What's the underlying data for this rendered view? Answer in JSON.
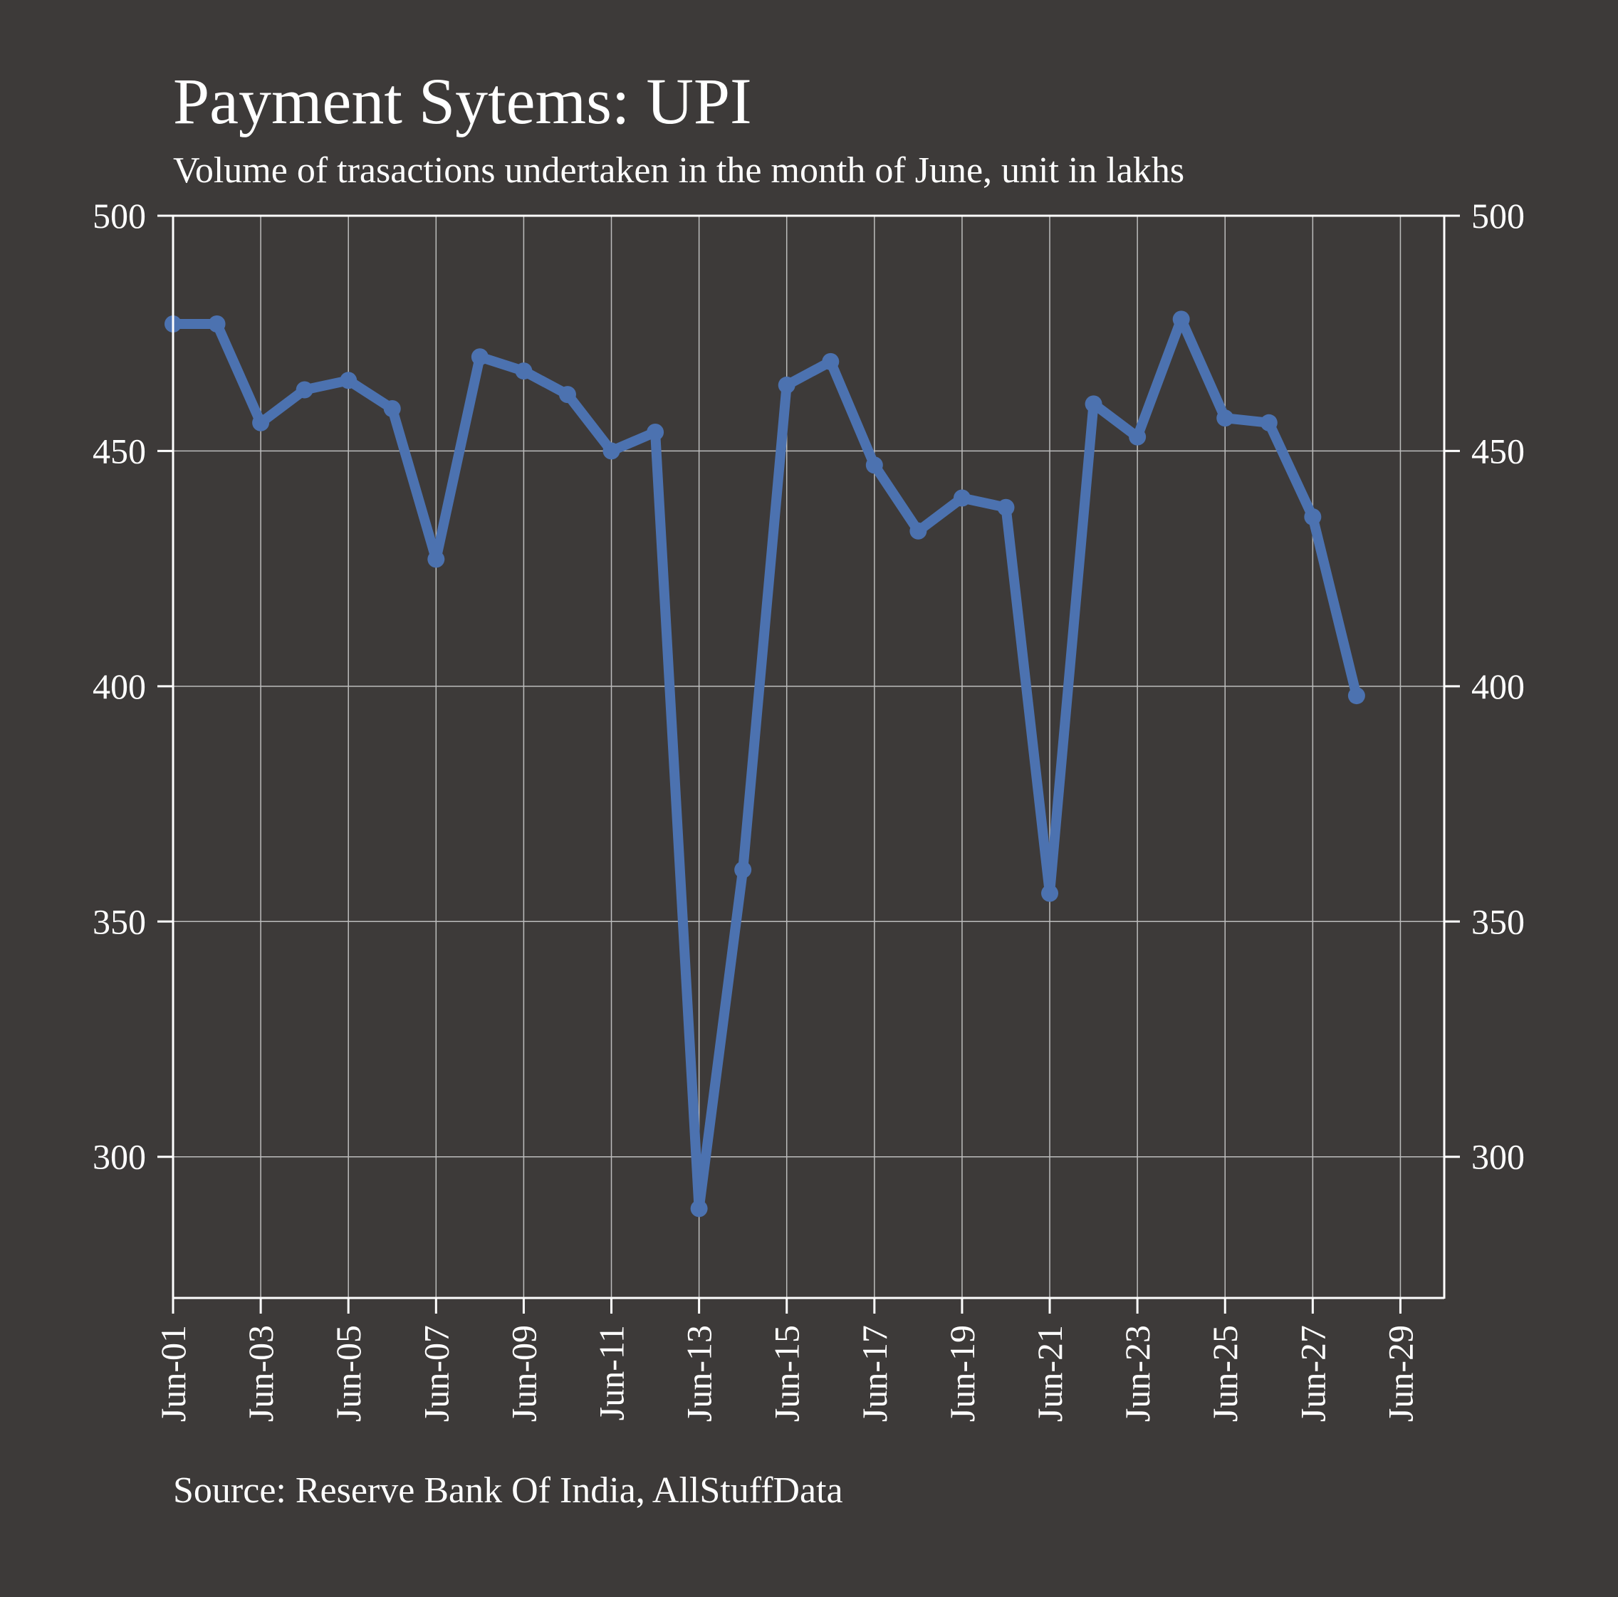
{
  "chart_data": {
    "type": "line",
    "title": "Payment Sytems: UPI",
    "subtitle": "Volume of trasactions undertaken in the month of June, unit in lakhs",
    "source": "Source: Reserve Bank Of India, AllStuffData",
    "xlabel": "",
    "ylabel": "",
    "x_ticks": [
      "Jun-01",
      "Jun-03",
      "Jun-05",
      "Jun-07",
      "Jun-09",
      "Jun-11",
      "Jun-13",
      "Jun-15",
      "Jun-17",
      "Jun-19",
      "Jun-21",
      "Jun-23",
      "Jun-25",
      "Jun-27",
      "Jun-29"
    ],
    "y_ticks": [
      300,
      350,
      400,
      450,
      500
    ],
    "xlim_day": [
      1,
      30
    ],
    "ylim": [
      270,
      500
    ],
    "grid": true,
    "right_axis": true,
    "series": [
      {
        "color": "#4c72b0",
        "points": [
          {
            "x": "Jun-01",
            "y": 477
          },
          {
            "x": "Jun-02",
            "y": 477
          },
          {
            "x": "Jun-03",
            "y": 456
          },
          {
            "x": "Jun-04",
            "y": 463
          },
          {
            "x": "Jun-05",
            "y": 465
          },
          {
            "x": "Jun-06",
            "y": 459
          },
          {
            "x": "Jun-07",
            "y": 427
          },
          {
            "x": "Jun-08",
            "y": 470
          },
          {
            "x": "Jun-09",
            "y": 467
          },
          {
            "x": "Jun-10",
            "y": 462
          },
          {
            "x": "Jun-11",
            "y": 450
          },
          {
            "x": "Jun-12",
            "y": 454
          },
          {
            "x": "Jun-13",
            "y": 289
          },
          {
            "x": "Jun-14",
            "y": 361
          },
          {
            "x": "Jun-15",
            "y": 464
          },
          {
            "x": "Jun-16",
            "y": 469
          },
          {
            "x": "Jun-17",
            "y": 447
          },
          {
            "x": "Jun-18",
            "y": 433
          },
          {
            "x": "Jun-19",
            "y": 440
          },
          {
            "x": "Jun-20",
            "y": 438
          },
          {
            "x": "Jun-21",
            "y": 356
          },
          {
            "x": "Jun-22",
            "y": 460
          },
          {
            "x": "Jun-23",
            "y": 453
          },
          {
            "x": "Jun-24",
            "y": 478
          },
          {
            "x": "Jun-25",
            "y": 457
          },
          {
            "x": "Jun-26",
            "y": 456
          },
          {
            "x": "Jun-27",
            "y": 436
          },
          {
            "x": "Jun-28",
            "y": 398
          }
        ]
      }
    ]
  }
}
